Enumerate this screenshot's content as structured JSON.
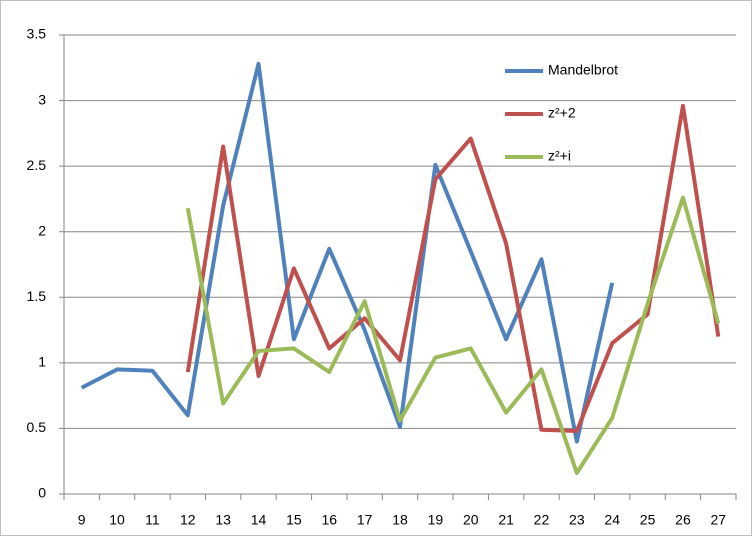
{
  "chart_data": {
    "type": "line",
    "categories": [
      "9",
      "10",
      "11",
      "12",
      "13",
      "14",
      "15",
      "16",
      "17",
      "18",
      "19",
      "20",
      "21",
      "22",
      "23",
      "24",
      "25",
      "26",
      "27"
    ],
    "series": [
      {
        "name": "Mandelbrot",
        "color": "#4f81bd",
        "values": [
          0.81,
          0.95,
          0.94,
          0.6,
          2.2,
          3.28,
          1.18,
          1.87,
          1.25,
          0.51,
          2.51,
          1.85,
          1.18,
          1.79,
          0.4,
          1.61,
          null,
          null,
          null
        ]
      },
      {
        "name": "z²+2",
        "color": "#c0504d",
        "values": [
          null,
          null,
          null,
          0.93,
          2.65,
          0.9,
          1.72,
          1.11,
          1.34,
          1.02,
          2.4,
          2.71,
          1.91,
          0.49,
          0.48,
          1.15,
          1.37,
          2.96,
          1.2
        ]
      },
      {
        "name": "z²+i",
        "color": "#9bbb59",
        "values": [
          null,
          null,
          null,
          2.18,
          0.69,
          1.09,
          1.11,
          0.93,
          1.47,
          0.56,
          1.04,
          1.11,
          0.62,
          0.95,
          0.16,
          0.58,
          1.45,
          2.26,
          1.3
        ]
      }
    ],
    "ylim": [
      0,
      3.5
    ],
    "yticks": [
      0,
      0.5,
      1,
      1.5,
      2,
      2.5,
      3,
      3.5
    ],
    "grid": true,
    "legend": "upper right"
  }
}
